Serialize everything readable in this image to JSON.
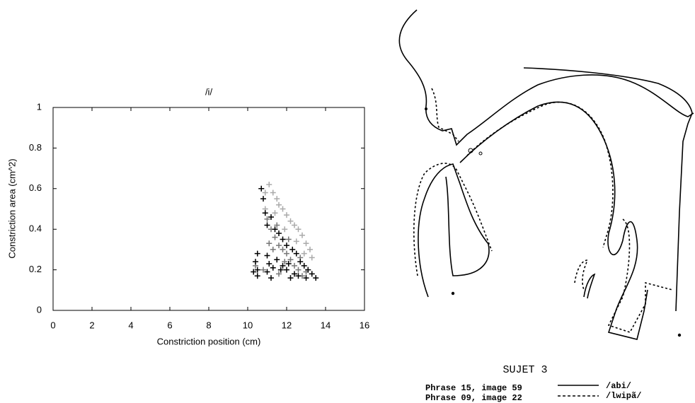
{
  "chart_data": {
    "type": "scatter",
    "title": "/i/",
    "x_label": "Constriction position (cm)",
    "y_label": "Constriction area (cm^2)",
    "xlim": [
      0,
      16
    ],
    "ylim": [
      0,
      1
    ],
    "xticks": [
      0,
      2,
      4,
      6,
      8,
      10,
      12,
      14,
      16
    ],
    "yticks": [
      0,
      0.2,
      0.4,
      0.6,
      0.8,
      1
    ],
    "marker": "plus",
    "series": [
      {
        "color": "#aaaaaa",
        "x": [
          10.7,
          10.9,
          11.1,
          11.3,
          11.5,
          11.6,
          11.8,
          12.0,
          12.2,
          12.4,
          12.6,
          12.8,
          13.0,
          13.2,
          13.3,
          10.9,
          11.4,
          11.9,
          12.5,
          12.9
        ],
        "y": [
          0.6,
          0.58,
          0.62,
          0.58,
          0.55,
          0.52,
          0.5,
          0.47,
          0.44,
          0.42,
          0.4,
          0.37,
          0.33,
          0.3,
          0.26,
          0.5,
          0.48,
          0.4,
          0.34,
          0.28
        ]
      },
      {
        "color": "#777777",
        "x": [
          11.0,
          11.2,
          11.4,
          11.6,
          11.8,
          12.0,
          12.2,
          12.4,
          11.3,
          11.9,
          12.6,
          13.0,
          11.1,
          11.5,
          12.1,
          12.7,
          10.4,
          10.8,
          11.6,
          12.8
        ],
        "y": [
          0.45,
          0.4,
          0.36,
          0.32,
          0.3,
          0.28,
          0.25,
          0.22,
          0.3,
          0.24,
          0.2,
          0.19,
          0.33,
          0.42,
          0.35,
          0.26,
          0.22,
          0.2,
          0.18,
          0.17
        ]
      },
      {
        "color": "#000000",
        "x": [
          10.5,
          10.4,
          10.5,
          10.5,
          10.3,
          11.0,
          11.1,
          11.0,
          11.2,
          10.8,
          10.9,
          11.0,
          11.2,
          11.4,
          11.6,
          11.8,
          12.0,
          12.3,
          12.5,
          12.7,
          12.9,
          13.1,
          13.3,
          13.5,
          12.0,
          12.4,
          12.2,
          11.8,
          11.5,
          13.0,
          11.7,
          12.6,
          11.3,
          12.1,
          10.7
        ],
        "y": [
          0.28,
          0.24,
          0.2,
          0.17,
          0.19,
          0.27,
          0.23,
          0.19,
          0.16,
          0.55,
          0.48,
          0.42,
          0.46,
          0.4,
          0.38,
          0.35,
          0.32,
          0.3,
          0.28,
          0.24,
          0.22,
          0.2,
          0.18,
          0.16,
          0.2,
          0.18,
          0.16,
          0.22,
          0.25,
          0.16,
          0.2,
          0.17,
          0.21,
          0.23,
          0.6
        ]
      }
    ]
  },
  "figure_b": {
    "subject": "SUJET 3",
    "lines": [
      {
        "label": "Phrase 15, image 59",
        "token": "/abi/"
      },
      {
        "label": "Phrase 09, image 22",
        "token": "/lwipã/"
      }
    ]
  }
}
